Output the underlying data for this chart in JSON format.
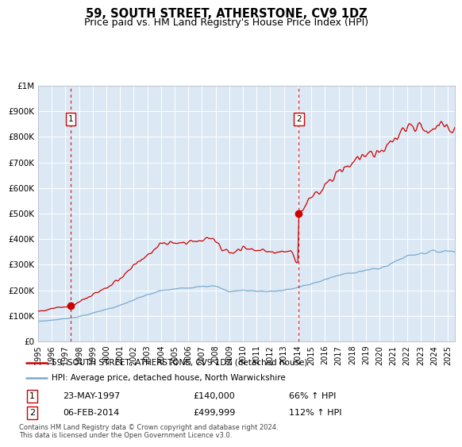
{
  "title": "59, SOUTH STREET, ATHERSTONE, CV9 1DZ",
  "subtitle": "Price paid vs. HM Land Registry's House Price Index (HPI)",
  "plot_bg_color": "#dce9f5",
  "ylim": [
    0,
    1000000
  ],
  "xlim_start": 1995.0,
  "xlim_end": 2025.5,
  "ytick_labels": [
    "£0",
    "£100K",
    "£200K",
    "£300K",
    "£400K",
    "£500K",
    "£600K",
    "£700K",
    "£800K",
    "£900K",
    "£1M"
  ],
  "ytick_values": [
    0,
    100000,
    200000,
    300000,
    400000,
    500000,
    600000,
    700000,
    800000,
    900000,
    1000000
  ],
  "xtick_years": [
    1995,
    1996,
    1997,
    1998,
    1999,
    2000,
    2001,
    2002,
    2003,
    2004,
    2005,
    2006,
    2007,
    2008,
    2009,
    2010,
    2011,
    2012,
    2013,
    2014,
    2015,
    2016,
    2017,
    2018,
    2019,
    2020,
    2021,
    2022,
    2023,
    2024,
    2025
  ],
  "transaction1_x": 1997.39,
  "transaction1_y": 140000,
  "transaction2_x": 2014.09,
  "transaction2_y": 499999,
  "legend_line1": "59, SOUTH STREET, ATHERSTONE, CV9 1DZ (detached house)",
  "legend_line2": "HPI: Average price, detached house, North Warwickshire",
  "footnote": "Contains HM Land Registry data © Crown copyright and database right 2024.\nThis data is licensed under the Open Government Licence v3.0.",
  "table_row1_num": "1",
  "table_row1_date": "23-MAY-1997",
  "table_row1_price": "£140,000",
  "table_row1_hpi": "66% ↑ HPI",
  "table_row2_num": "2",
  "table_row2_date": "06-FEB-2014",
  "table_row2_price": "£499,999",
  "table_row2_hpi": "112% ↑ HPI",
  "red_color": "#cc0000",
  "blue_color": "#7aaacf",
  "marker_box_color": "#cc0000"
}
